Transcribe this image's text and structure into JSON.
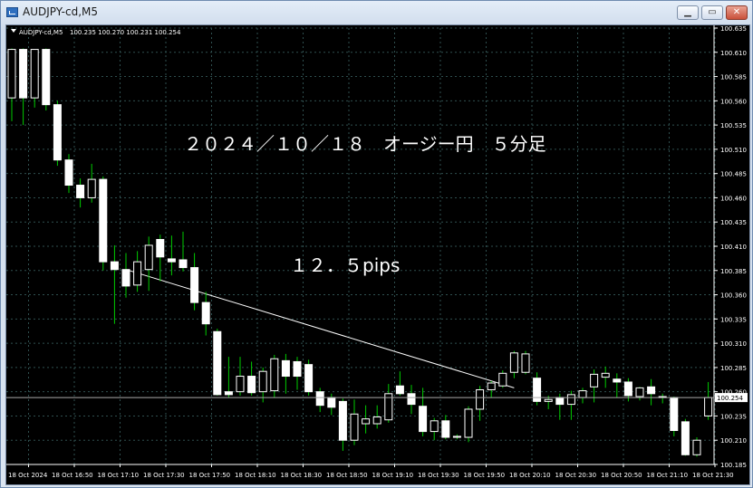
{
  "window": {
    "title": "AUDJPY-cd,M5",
    "minimize_label": "▁",
    "restore_label": "▭",
    "close_label": "✕",
    "app_icon": "chart-window-icon"
  },
  "colors": {
    "background": "#000000",
    "grid": "#2f4f4f",
    "bull": "#ffffff",
    "bear": "#ffffff",
    "wick": "#00cc00",
    "price_line": "#a9a9a9",
    "text": "#ffffff",
    "trendline": "#ffffff"
  },
  "header": {
    "symbol_label": "AUDJPY-cd,M5",
    "ohlc_label": "100.235 100.270 100.231 100.254"
  },
  "annotations": {
    "title": "２０２４／１０／１８　オージー円　５分足",
    "pips": "１２．５pips"
  },
  "current_price": {
    "value": 100.254,
    "label": "100.254"
  },
  "chart_data": {
    "type": "candlestick",
    "symbol": "AUDJPY-cd",
    "timeframe": "M5",
    "ylim": [
      100.185,
      100.635
    ],
    "y_ticks": [
      "100.635",
      "100.610",
      "100.585",
      "100.560",
      "100.535",
      "100.510",
      "100.485",
      "100.460",
      "100.435",
      "100.410",
      "100.385",
      "100.360",
      "100.335",
      "100.310",
      "100.285",
      "100.260",
      "100.235",
      "100.210",
      "100.185"
    ],
    "x_ticks": [
      "18 Oct 2024",
      "18 Oct 16:50",
      "18 Oct 17:10",
      "18 Oct 17:30",
      "18 Oct 17:50",
      "18 Oct 18:10",
      "18 Oct 18:30",
      "18 Oct 18:50",
      "18 Oct 19:10",
      "18 Oct 19:30",
      "18 Oct 19:50",
      "18 Oct 20:10",
      "18 Oct 20:30",
      "18 Oct 20:50",
      "18 Oct 21:10",
      "18 Oct 21:30"
    ],
    "grid": true,
    "candles": [
      {
        "o": 100.563,
        "h": 100.614,
        "l": 100.539,
        "c": 100.613
      },
      {
        "o": 100.613,
        "h": 100.614,
        "l": 100.535,
        "c": 100.563
      },
      {
        "o": 100.563,
        "h": 100.613,
        "l": 100.553,
        "c": 100.613
      },
      {
        "o": 100.613,
        "h": 100.614,
        "l": 100.55,
        "c": 100.556
      },
      {
        "o": 100.556,
        "h": 100.56,
        "l": 100.493,
        "c": 100.499
      },
      {
        "o": 100.499,
        "h": 100.505,
        "l": 100.465,
        "c": 100.473
      },
      {
        "o": 100.473,
        "h": 100.48,
        "l": 100.45,
        "c": 100.46
      },
      {
        "o": 100.46,
        "h": 100.495,
        "l": 100.455,
        "c": 100.479
      },
      {
        "o": 100.479,
        "h": 100.482,
        "l": 100.385,
        "c": 100.394
      },
      {
        "o": 100.394,
        "h": 100.411,
        "l": 100.33,
        "c": 100.386
      },
      {
        "o": 100.386,
        "h": 100.403,
        "l": 100.357,
        "c": 100.369
      },
      {
        "o": 100.37,
        "h": 100.405,
        "l": 100.363,
        "c": 100.394
      },
      {
        "o": 100.386,
        "h": 100.42,
        "l": 100.364,
        "c": 100.411
      },
      {
        "o": 100.417,
        "h": 100.422,
        "l": 100.374,
        "c": 100.399
      },
      {
        "o": 100.397,
        "h": 100.421,
        "l": 100.38,
        "c": 100.394
      },
      {
        "o": 100.396,
        "h": 100.425,
        "l": 100.384,
        "c": 100.388
      },
      {
        "o": 100.388,
        "h": 100.403,
        "l": 100.344,
        "c": 100.352
      },
      {
        "o": 100.352,
        "h": 100.363,
        "l": 100.318,
        "c": 100.33
      },
      {
        "o": 100.322,
        "h": 100.325,
        "l": 100.256,
        "c": 100.257
      },
      {
        "o": 100.26,
        "h": 100.296,
        "l": 100.254,
        "c": 100.257
      },
      {
        "o": 100.26,
        "h": 100.296,
        "l": 100.256,
        "c": 100.276
      },
      {
        "o": 100.276,
        "h": 100.291,
        "l": 100.256,
        "c": 100.259
      },
      {
        "o": 100.26,
        "h": 100.285,
        "l": 100.249,
        "c": 100.281
      },
      {
        "o": 100.261,
        "h": 100.298,
        "l": 100.254,
        "c": 100.294
      },
      {
        "o": 100.292,
        "h": 100.299,
        "l": 100.258,
        "c": 100.276
      },
      {
        "o": 100.291,
        "h": 100.296,
        "l": 100.262,
        "c": 100.276
      },
      {
        "o": 100.288,
        "h": 100.293,
        "l": 100.256,
        "c": 100.26
      },
      {
        "o": 100.26,
        "h": 100.264,
        "l": 100.239,
        "c": 100.246
      },
      {
        "o": 100.254,
        "h": 100.258,
        "l": 100.236,
        "c": 100.244
      },
      {
        "o": 100.25,
        "h": 100.253,
        "l": 100.199,
        "c": 100.21
      },
      {
        "o": 100.21,
        "h": 100.252,
        "l": 100.205,
        "c": 100.237
      },
      {
        "o": 100.227,
        "h": 100.246,
        "l": 100.217,
        "c": 100.232
      },
      {
        "o": 100.227,
        "h": 100.246,
        "l": 100.222,
        "c": 100.234
      },
      {
        "o": 100.231,
        "h": 100.268,
        "l": 100.228,
        "c": 100.258
      },
      {
        "o": 100.266,
        "h": 100.281,
        "l": 100.256,
        "c": 100.258
      },
      {
        "o": 100.258,
        "h": 100.267,
        "l": 100.237,
        "c": 100.247
      },
      {
        "o": 100.245,
        "h": 100.264,
        "l": 100.214,
        "c": 100.219
      },
      {
        "o": 100.219,
        "h": 100.233,
        "l": 100.21,
        "c": 100.23
      },
      {
        "o": 100.23,
        "h": 100.236,
        "l": 100.211,
        "c": 100.213
      },
      {
        "o": 100.213,
        "h": 100.216,
        "l": 100.211,
        "c": 100.214
      },
      {
        "o": 100.213,
        "h": 100.245,
        "l": 100.208,
        "c": 100.242
      },
      {
        "o": 100.242,
        "h": 100.266,
        "l": 100.23,
        "c": 100.262
      },
      {
        "o": 100.262,
        "h": 100.271,
        "l": 100.254,
        "c": 100.269
      },
      {
        "o": 100.266,
        "h": 100.282,
        "l": 100.264,
        "c": 100.279
      },
      {
        "o": 100.28,
        "h": 100.302,
        "l": 100.274,
        "c": 100.3
      },
      {
        "o": 100.28,
        "h": 100.302,
        "l": 100.278,
        "c": 100.299
      },
      {
        "o": 100.274,
        "h": 100.28,
        "l": 100.246,
        "c": 100.25
      },
      {
        "o": 100.25,
        "h": 100.256,
        "l": 100.242,
        "c": 100.252
      },
      {
        "o": 100.254,
        "h": 100.258,
        "l": 100.231,
        "c": 100.247
      },
      {
        "o": 100.247,
        "h": 100.261,
        "l": 100.231,
        "c": 100.257
      },
      {
        "o": 100.254,
        "h": 100.264,
        "l": 100.248,
        "c": 100.261
      },
      {
        "o": 100.265,
        "h": 100.283,
        "l": 100.249,
        "c": 100.278
      },
      {
        "o": 100.275,
        "h": 100.286,
        "l": 100.264,
        "c": 100.279
      },
      {
        "o": 100.273,
        "h": 100.279,
        "l": 100.254,
        "c": 100.27
      },
      {
        "o": 100.27,
        "h": 100.274,
        "l": 100.25,
        "c": 100.256
      },
      {
        "o": 100.255,
        "h": 100.265,
        "l": 100.251,
        "c": 100.264
      },
      {
        "o": 100.265,
        "h": 100.273,
        "l": 100.246,
        "c": 100.258
      },
      {
        "o": 100.255,
        "h": 100.258,
        "l": 100.248,
        "c": 100.254
      },
      {
        "o": 100.254,
        "h": 100.255,
        "l": 100.214,
        "c": 100.22
      },
      {
        "o": 100.229,
        "h": 100.232,
        "l": 100.194,
        "c": 100.195
      },
      {
        "o": 100.195,
        "h": 100.213,
        "l": 100.193,
        "c": 100.21
      },
      {
        "o": 100.235,
        "h": 100.27,
        "l": 100.231,
        "c": 100.254
      }
    ],
    "trendline": {
      "from_index": 10,
      "from_price": 100.386,
      "to_index": 44,
      "to_price": 100.264
    }
  }
}
